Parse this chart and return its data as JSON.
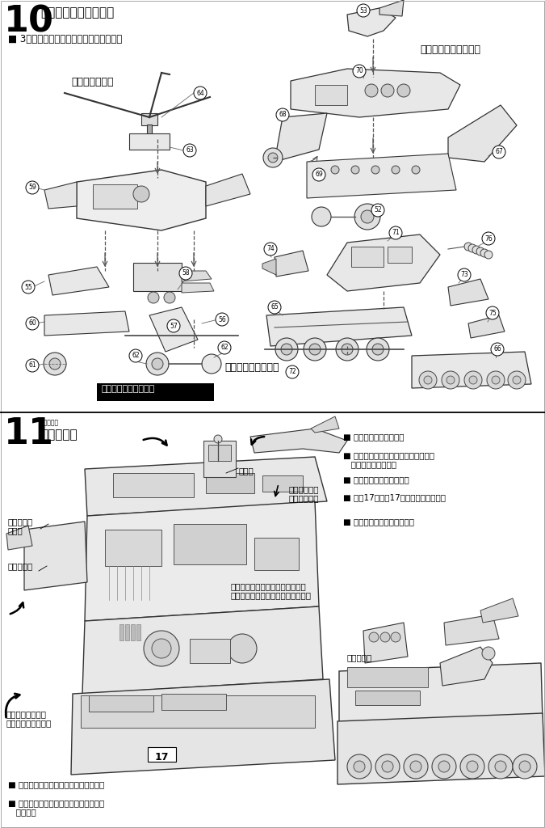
{
  "bg": "#f8f8f8",
  "page_bg": "#ffffff",
  "title10": "10",
  "heading10": "《マシンの組み立て》",
  "sub10": "■ 3つのマシンをそれぞれ組み立てます。",
  "label_sub": "〈サブマシン〉",
  "label_jet": "〈シグコンジェット〉",
  "label_tank": "〈シグコンタンク〉",
  "label_black": "切り口をきれいに割る",
  "title11": "11",
  "heading11_r": "あそびかた",
  "heading11": "〈遊び方〉",
  "label_cmd": "司令塔",
  "label_stk_y": "ステッカー\n（黄）",
  "label_stk": "ステッカー",
  "label_head": "頭部を半回転させ\nると飛び出します。",
  "label_press": "ここを押すと\n発射します。",
  "label_cat_stop": "カタパルトを開け司令塔を前にた\nおすと、カタパルトが止まります。",
  "label_cat": "カタパルト",
  "bullets_right": [
    "■ 頭部が飛び出します。",
    "■ カタパルトから、マシンを発射させ\n   ることができます。",
    "■ 司令塔、翼が動きます。",
    "■ 戦闘17、要塞17に自由に変形します",
    "■ モーター動力で走ります。"
  ],
  "bullets_bot": [
    "■ スイッチを入れて走らせてください。",
    "■ 走らせない時は電池をはずしておきま\n   しょう。"
  ]
}
